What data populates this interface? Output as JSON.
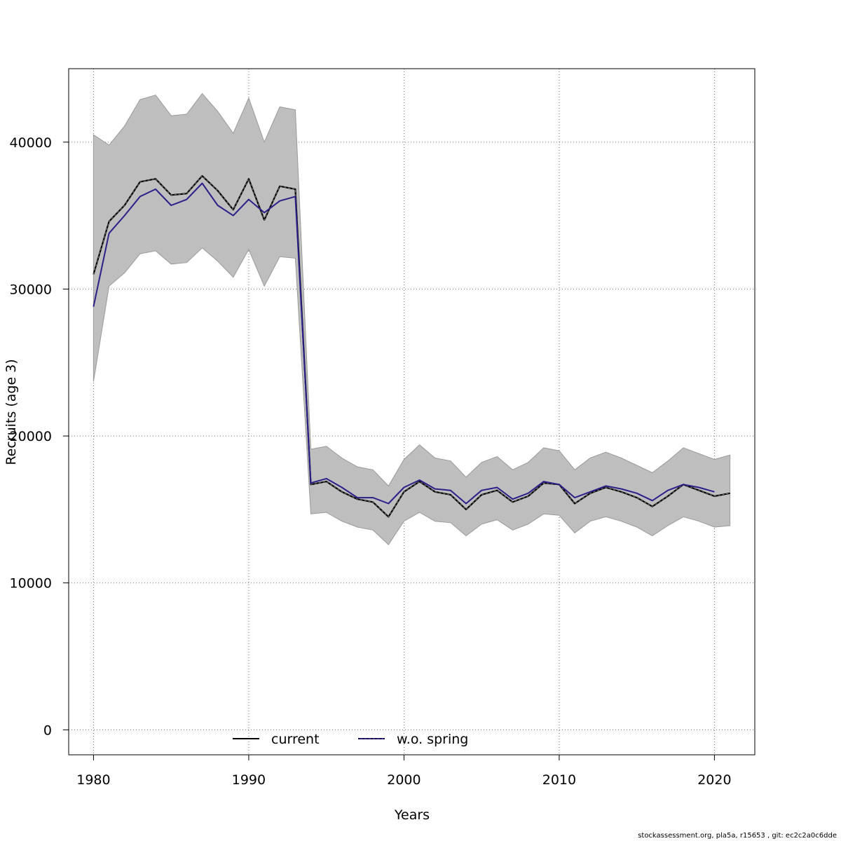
{
  "chart_data": {
    "type": "line",
    "title": "",
    "xlabel": "Years",
    "ylabel": "Recruits (age 3)",
    "xlim": [
      1978.4,
      2022.6
    ],
    "ylim": [
      -1700,
      45000
    ],
    "x_ticks": [
      1980,
      1990,
      2000,
      2010,
      2020
    ],
    "y_ticks": [
      0,
      10000,
      20000,
      30000,
      40000
    ],
    "grid": true,
    "legend_position": "bottom",
    "colors": {
      "band": "#bebebe",
      "band_edge": "#9a9a9a",
      "current": "#000000",
      "wo_spring": "#2b1f8a",
      "grid": "#6f6f6f"
    },
    "band": {
      "x": [
        1980,
        1981,
        1982,
        1983,
        1984,
        1985,
        1986,
        1987,
        1988,
        1989,
        1990,
        1991,
        1992,
        1993,
        1994,
        1995,
        1996,
        1997,
        1998,
        1999,
        2000,
        2001,
        2002,
        2003,
        2004,
        2005,
        2006,
        2007,
        2008,
        2009,
        2010,
        2011,
        2012,
        2013,
        2014,
        2015,
        2016,
        2017,
        2018,
        2019,
        2020,
        2021
      ],
      "upper": [
        40500,
        39800,
        41100,
        42900,
        43200,
        41800,
        41900,
        43300,
        42100,
        40600,
        43000,
        40000,
        42400,
        42200,
        19100,
        19300,
        18500,
        17900,
        17700,
        16600,
        18400,
        19400,
        18500,
        18300,
        17200,
        18200,
        18600,
        17700,
        18200,
        19200,
        19000,
        17700,
        18500,
        18900,
        18500,
        18000,
        17500,
        18300,
        19200,
        18800,
        18400,
        18700
      ],
      "lower": [
        23700,
        30200,
        31100,
        32400,
        32600,
        31700,
        31800,
        32800,
        31900,
        30800,
        32700,
        30200,
        32200,
        32100,
        14700,
        14800,
        14200,
        13800,
        13600,
        12600,
        14200,
        14800,
        14200,
        14100,
        13200,
        14000,
        14300,
        13600,
        14000,
        14700,
        14600,
        13400,
        14200,
        14500,
        14200,
        13800,
        13200,
        13900,
        14500,
        14200,
        13800,
        13900
      ]
    },
    "series": [
      {
        "name": "current",
        "x": [
          1980,
          1981,
          1982,
          1983,
          1984,
          1985,
          1986,
          1987,
          1988,
          1989,
          1990,
          1991,
          1992,
          1993,
          1994,
          1995,
          1996,
          1997,
          1998,
          1999,
          2000,
          2001,
          2002,
          2003,
          2004,
          2005,
          2006,
          2007,
          2008,
          2009,
          2010,
          2011,
          2012,
          2013,
          2014,
          2015,
          2016,
          2017,
          2018,
          2019,
          2020,
          2021
        ],
        "values": [
          31000,
          34600,
          35700,
          37300,
          37500,
          36400,
          36500,
          37700,
          36700,
          35400,
          37500,
          34700,
          37000,
          36800,
          16700,
          16900,
          16200,
          15700,
          15500,
          14500,
          16200,
          16900,
          16200,
          16000,
          15000,
          16000,
          16300,
          15500,
          15900,
          16800,
          16700,
          15400,
          16100,
          16500,
          16200,
          15800,
          15200,
          15900,
          16700,
          16300,
          15900,
          16100
        ]
      },
      {
        "name": "w.o. spring",
        "x": [
          1980,
          1981,
          1982,
          1983,
          1984,
          1985,
          1986,
          1987,
          1988,
          1989,
          1990,
          1991,
          1992,
          1993,
          1994,
          1995,
          1996,
          1997,
          1998,
          1999,
          2000,
          2001,
          2002,
          2003,
          2004,
          2005,
          2006,
          2007,
          2008,
          2009,
          2010,
          2011,
          2012,
          2013,
          2014,
          2015,
          2016,
          2017,
          2018,
          2019,
          2020
        ],
        "values": [
          28800,
          33800,
          35000,
          36300,
          36800,
          35700,
          36100,
          37200,
          35700,
          35000,
          36100,
          35200,
          36000,
          36300,
          16800,
          17100,
          16500,
          15800,
          15800,
          15400,
          16500,
          17000,
          16400,
          16300,
          15400,
          16300,
          16500,
          15700,
          16100,
          16900,
          16700,
          15800,
          16200,
          16600,
          16400,
          16100,
          15600,
          16300,
          16700,
          16500,
          16200
        ]
      }
    ],
    "legend": {
      "current": "current",
      "wo_spring": "w.o. spring"
    },
    "footer": "stockassessment.org, pla5a, r15653 , git: ec2c2a0c6dde"
  }
}
